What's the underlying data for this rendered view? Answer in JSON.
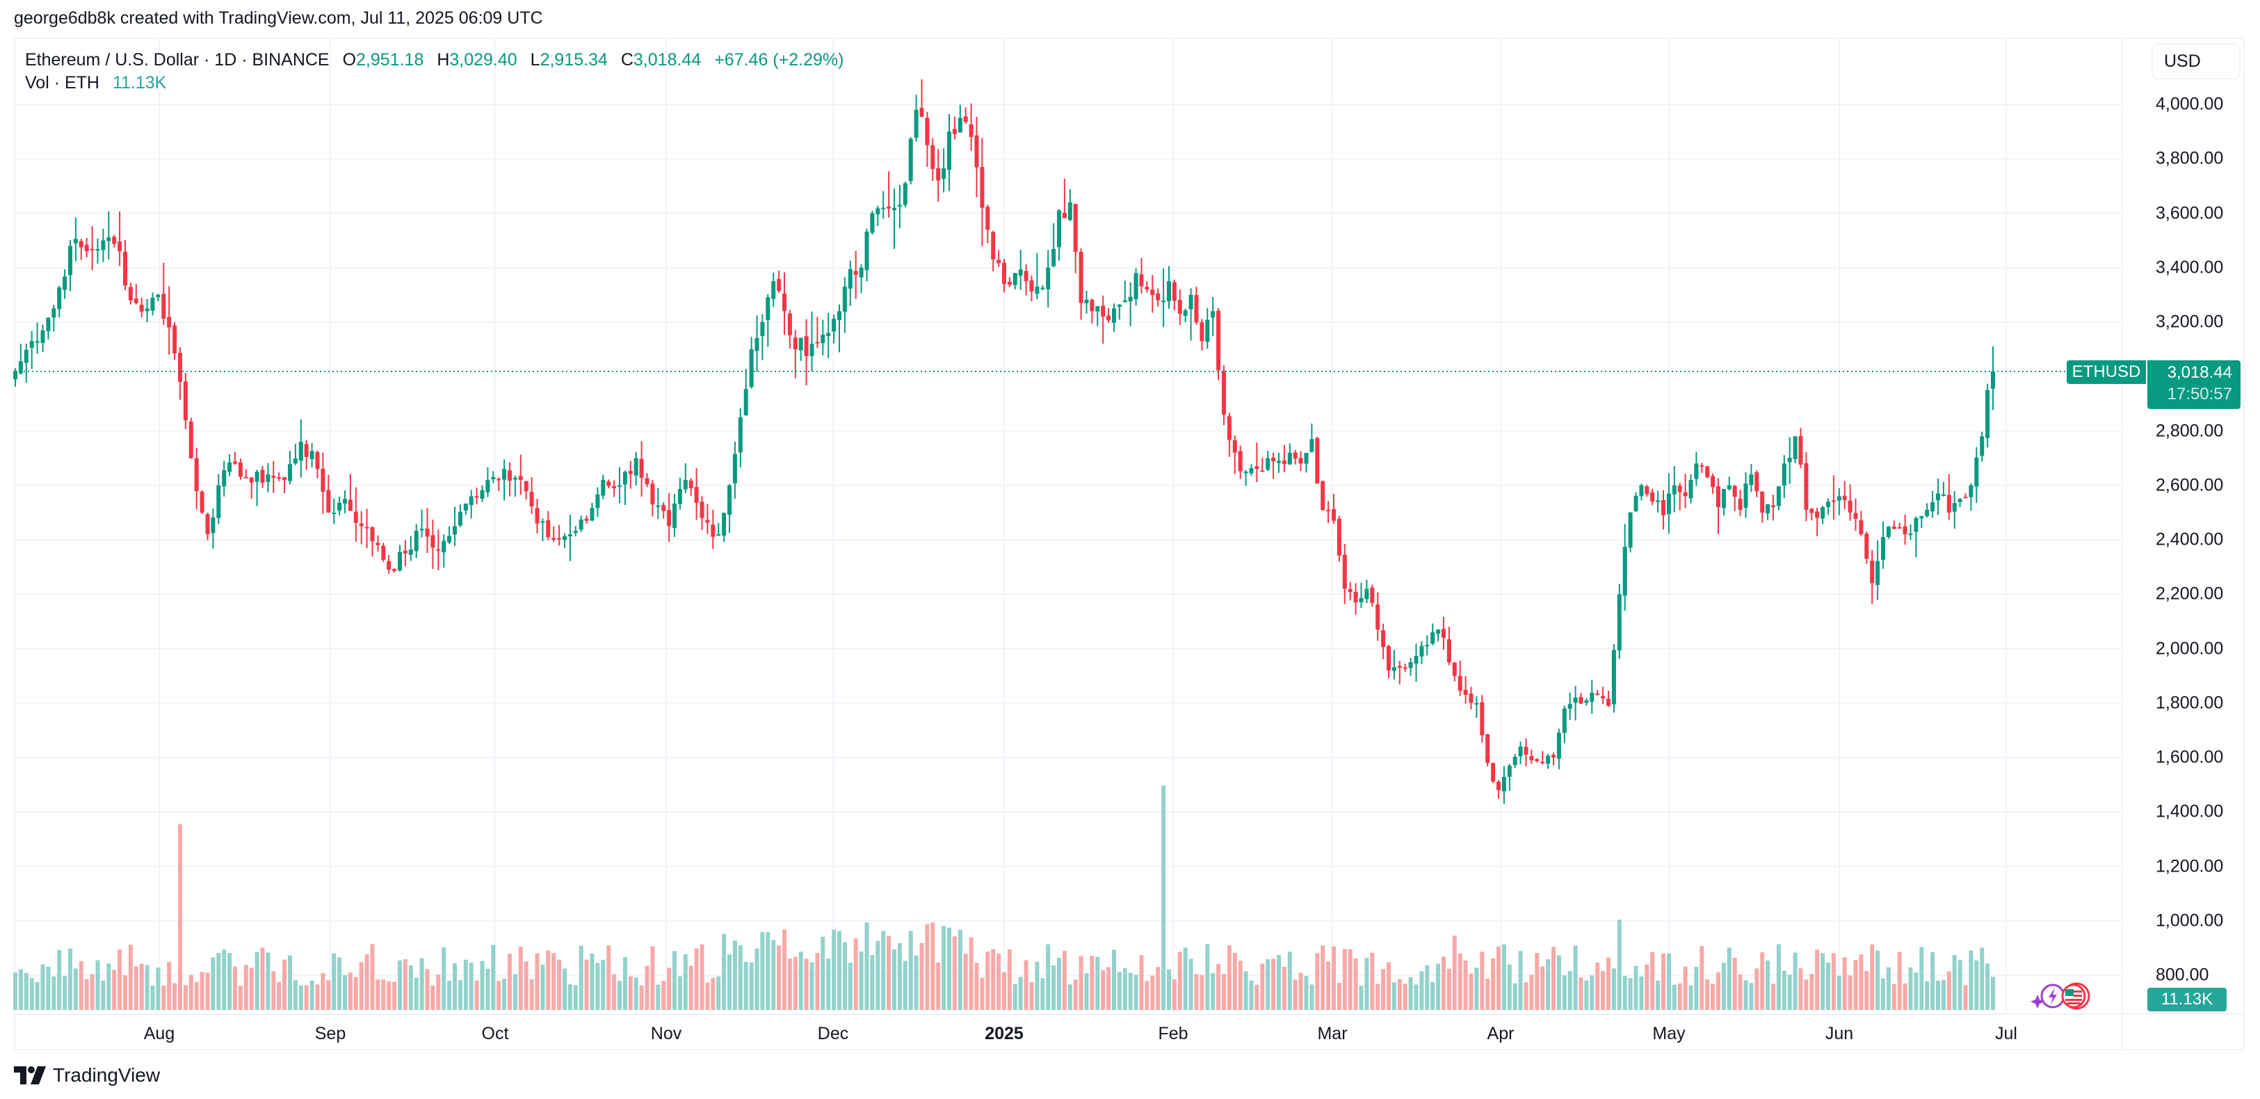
{
  "attribution": "george6db8k created with TradingView.com, Jul 11, 2025 06:09 UTC",
  "legend": {
    "symbol": "Ethereum / U.S. Dollar · 1D · BINANCE",
    "open_label": "O",
    "open": "2,951.18",
    "high_label": "H",
    "high": "3,029.40",
    "low_label": "L",
    "low": "2,915.34",
    "close_label": "C",
    "close": "3,018.44",
    "change": "+67.46 (+2.29%)",
    "volume_label": "Vol · ETH",
    "volume": "11.13K"
  },
  "currency_button": "USD",
  "price_label": {
    "symbol": "ETHUSD",
    "price": "3,018.44",
    "countdown": "17:50:57"
  },
  "volume_label_box": "11.13K",
  "footer": {
    "brand": "TradingView"
  },
  "colors": {
    "up": "#089981",
    "down": "#F23645",
    "vol_up": "#92d2cc",
    "vol_down": "#f7a9a7",
    "grid": "#f0f3fa",
    "price_line": "#089981"
  },
  "chart_data": {
    "type": "candlestick",
    "title": "Ethereum / U.S. Dollar · 1D · BINANCE",
    "xlabel": "",
    "ylabel": "USD",
    "ylim": [
      800,
      4000
    ],
    "y_ticks": [
      "4,000.00",
      "3,800.00",
      "3,600.00",
      "3,400.00",
      "3,200.00",
      "2,800.00",
      "2,600.00",
      "2,400.00",
      "2,200.00",
      "2,000.00",
      "1,800.00",
      "1,600.00",
      "1,400.00",
      "1,200.00",
      "1,000.00",
      "800.00"
    ],
    "y_tick_values": [
      4000,
      3800,
      3600,
      3400,
      3200,
      2800,
      2600,
      2400,
      2200,
      2000,
      1800,
      1600,
      1400,
      1200,
      1000,
      800
    ],
    "x_ticks": [
      {
        "label": "Aug",
        "x": 229
      },
      {
        "label": "Sep",
        "x": 475
      },
      {
        "label": "Oct",
        "x": 712
      },
      {
        "label": "Nov",
        "x": 958
      },
      {
        "label": "Dec",
        "x": 1198
      },
      {
        "label": "2025",
        "x": 1444,
        "bold": true
      },
      {
        "label": "Feb",
        "x": 1687
      },
      {
        "label": "Mar",
        "x": 1916
      },
      {
        "label": "Apr",
        "x": 2158
      },
      {
        "label": "May",
        "x": 2400
      },
      {
        "label": "Jun",
        "x": 2645
      },
      {
        "label": "Jul",
        "x": 2885
      }
    ],
    "grid": true,
    "last_price": 3018.44,
    "close_keypoints": [
      [
        0,
        3020
      ],
      [
        3,
        3130
      ],
      [
        7,
        3250
      ],
      [
        10,
        3480
      ],
      [
        13,
        3460
      ],
      [
        16,
        3500
      ],
      [
        19,
        3460
      ],
      [
        21,
        3280
      ],
      [
        24,
        3250
      ],
      [
        26,
        3300
      ],
      [
        28,
        3180
      ],
      [
        30,
        2980
      ],
      [
        32,
        2700
      ],
      [
        34,
        2500
      ],
      [
        35,
        2420
      ],
      [
        37,
        2600
      ],
      [
        40,
        2680
      ],
      [
        43,
        2610
      ],
      [
        46,
        2640
      ],
      [
        49,
        2620
      ],
      [
        52,
        2760
      ],
      [
        55,
        2660
      ],
      [
        57,
        2500
      ],
      [
        60,
        2550
      ],
      [
        63,
        2450
      ],
      [
        66,
        2380
      ],
      [
        68,
        2290
      ],
      [
        71,
        2350
      ],
      [
        74,
        2440
      ],
      [
        77,
        2360
      ],
      [
        80,
        2450
      ],
      [
        83,
        2560
      ],
      [
        86,
        2620
      ],
      [
        89,
        2660
      ],
      [
        92,
        2620
      ],
      [
        95,
        2460
      ],
      [
        98,
        2400
      ],
      [
        101,
        2420
      ],
      [
        104,
        2470
      ],
      [
        107,
        2620
      ],
      [
        110,
        2600
      ],
      [
        113,
        2700
      ],
      [
        116,
        2530
      ],
      [
        119,
        2450
      ],
      [
        122,
        2620
      ],
      [
        125,
        2480
      ],
      [
        128,
        2420
      ],
      [
        130,
        2600
      ],
      [
        132,
        2850
      ],
      [
        134,
        3100
      ],
      [
        136,
        3200
      ],
      [
        138,
        3350
      ],
      [
        140,
        3240
      ],
      [
        142,
        3100
      ],
      [
        145,
        3120
      ],
      [
        148,
        3160
      ],
      [
        151,
        3330
      ],
      [
        154,
        3400
      ],
      [
        156,
        3600
      ],
      [
        158,
        3620
      ],
      [
        160,
        3620
      ],
      [
        162,
        3710
      ],
      [
        164,
        3980
      ],
      [
        166,
        3850
      ],
      [
        168,
        3720
      ],
      [
        170,
        3900
      ],
      [
        172,
        3950
      ],
      [
        174,
        3880
      ],
      [
        176,
        3620
      ],
      [
        178,
        3430
      ],
      [
        180,
        3340
      ],
      [
        182,
        3380
      ],
      [
        184,
        3350
      ],
      [
        186,
        3330
      ],
      [
        188,
        3400
      ],
      [
        190,
        3610
      ],
      [
        192,
        3640
      ],
      [
        194,
        3270
      ],
      [
        196,
        3240
      ],
      [
        198,
        3220
      ],
      [
        200,
        3250
      ],
      [
        202,
        3280
      ],
      [
        204,
        3380
      ],
      [
        206,
        3320
      ],
      [
        208,
        3280
      ],
      [
        210,
        3350
      ],
      [
        212,
        3230
      ],
      [
        214,
        3300
      ],
      [
        216,
        3130
      ],
      [
        218,
        3240
      ],
      [
        220,
        2860
      ],
      [
        222,
        2720
      ],
      [
        224,
        2650
      ],
      [
        226,
        2660
      ],
      [
        228,
        2700
      ],
      [
        230,
        2690
      ],
      [
        232,
        2720
      ],
      [
        234,
        2680
      ],
      [
        236,
        2770
      ],
      [
        238,
        2510
      ],
      [
        240,
        2470
      ],
      [
        242,
        2220
      ],
      [
        244,
        2170
      ],
      [
        246,
        2220
      ],
      [
        248,
        2070
      ],
      [
        250,
        1920
      ],
      [
        252,
        1930
      ],
      [
        254,
        1950
      ],
      [
        256,
        2010
      ],
      [
        258,
        2060
      ],
      [
        260,
        2040
      ],
      [
        262,
        1900
      ],
      [
        264,
        1830
      ],
      [
        266,
        1800
      ],
      [
        268,
        1580
      ],
      [
        270,
        1480
      ],
      [
        272,
        1570
      ],
      [
        274,
        1640
      ],
      [
        276,
        1590
      ],
      [
        278,
        1580
      ],
      [
        280,
        1600
      ],
      [
        282,
        1780
      ],
      [
        284,
        1820
      ],
      [
        286,
        1810
      ],
      [
        288,
        1830
      ],
      [
        290,
        1790
      ],
      [
        292,
        2200
      ],
      [
        294,
        2500
      ],
      [
        296,
        2600
      ],
      [
        298,
        2540
      ],
      [
        300,
        2490
      ],
      [
        302,
        2600
      ],
      [
        304,
        2560
      ],
      [
        306,
        2680
      ],
      [
        308,
        2630
      ],
      [
        310,
        2520
      ],
      [
        312,
        2600
      ],
      [
        314,
        2510
      ],
      [
        316,
        2640
      ],
      [
        318,
        2500
      ],
      [
        320,
        2520
      ],
      [
        322,
        2680
      ],
      [
        324,
        2780
      ],
      [
        326,
        2510
      ],
      [
        328,
        2480
      ],
      [
        330,
        2540
      ],
      [
        332,
        2560
      ],
      [
        334,
        2500
      ],
      [
        336,
        2420
      ],
      [
        338,
        2240
      ],
      [
        340,
        2410
      ],
      [
        342,
        2440
      ],
      [
        344,
        2420
      ],
      [
        346,
        2480
      ],
      [
        348,
        2510
      ],
      [
        350,
        2570
      ],
      [
        352,
        2500
      ],
      [
        354,
        2550
      ],
      [
        356,
        2600
      ],
      [
        358,
        2780
      ],
      [
        359,
        2950
      ],
      [
        360,
        3018.44
      ]
    ],
    "volume_spikes": [
      [
        30,
        11500
      ],
      [
        209,
        13900
      ],
      [
        230,
        3400
      ],
      [
        170,
        5100
      ],
      [
        262,
        4600
      ],
      [
        292,
        5600
      ],
      [
        260,
        3300
      ]
    ],
    "volume_units": "ETH"
  }
}
